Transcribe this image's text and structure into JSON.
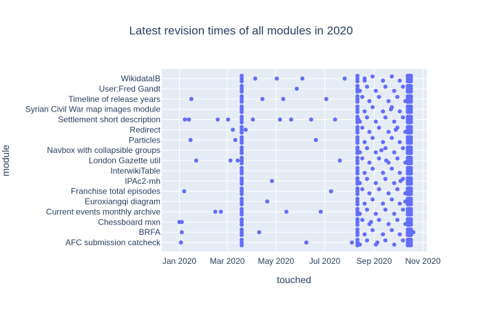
{
  "chart_data": {
    "type": "scatter",
    "title": "Latest revision times of all modules in 2020",
    "xlabel": "touched",
    "ylabel": "module",
    "x_ticks": [
      {
        "label": "Jan 2020",
        "date": "2020-01-01"
      },
      {
        "label": "Mar 2020",
        "date": "2020-03-01"
      },
      {
        "label": "May 2020",
        "date": "2020-05-01"
      },
      {
        "label": "Jul 2020",
        "date": "2020-07-01"
      },
      {
        "label": "Sep 2020",
        "date": "2020-09-01"
      },
      {
        "label": "Nov 2020",
        "date": "2020-11-01"
      }
    ],
    "xlim": [
      "2019-12-10",
      "2020-11-06"
    ],
    "y_ticks": [
      "AFC submission catcheck",
      "BRFA",
      "Chessboard mxn",
      "Current events monthly archive",
      "Euroxiangqi diagram",
      "Franchise total episodes",
      "IPAc2-mh",
      "InterwikiTable",
      "London Gazette util",
      "Navbox with collapsible groups",
      "Particles",
      "Redirect",
      "Settlement short description",
      "Syrian Civil War map images module",
      "Timeline of release years",
      "User:Fred Gandt",
      "WikidataIB"
    ],
    "marker_color": "#636efa",
    "grid": true,
    "series": [
      {
        "points": [
          [
            "2020-01-03",
            "AFC submission catcheck"
          ],
          [
            "2020-01-04",
            "BRFA"
          ],
          [
            "2020-01-01",
            "Chessboard mxn"
          ],
          [
            "2020-01-04",
            "Chessboard mxn"
          ],
          [
            "2020-01-07",
            "Franchise total episodes"
          ],
          [
            "2020-01-08",
            "Settlement short description"
          ],
          [
            "2020-01-13",
            "Settlement short description"
          ],
          [
            "2020-01-16",
            "Timeline of release years"
          ],
          [
            "2020-01-15",
            "Particles"
          ],
          [
            "2020-01-22",
            "London Gazette util"
          ],
          [
            "2020-02-15",
            "Current events monthly archive"
          ],
          [
            "2020-02-18",
            "Settlement short description"
          ],
          [
            "2020-02-22",
            "Current events monthly archive"
          ],
          [
            "2020-03-02",
            "Settlement short description"
          ],
          [
            "2020-03-05",
            "London Gazette util"
          ],
          [
            "2020-03-08",
            "Redirect"
          ],
          [
            "2020-03-11",
            "Particles"
          ],
          [
            "2020-03-14",
            "London Gazette util"
          ],
          [
            "2020-03-19",
            "London Gazette util"
          ],
          [
            "2020-03-24",
            "Redirect"
          ],
          [
            "2020-04-02",
            "Settlement short description"
          ],
          [
            "2020-04-05",
            "WikidataIB"
          ],
          [
            "2020-04-10",
            "BRFA"
          ],
          [
            "2020-04-14",
            "Timeline of release years"
          ],
          [
            "2020-04-20",
            "Euroxiangqi diagram"
          ],
          [
            "2020-04-26",
            "IPAc2-mh"
          ],
          [
            "2020-05-02",
            "WikidataIB"
          ],
          [
            "2020-05-06",
            "Settlement short description"
          ],
          [
            "2020-05-10",
            "Timeline of release years"
          ],
          [
            "2020-05-14",
            "Current events monthly archive"
          ],
          [
            "2020-05-20",
            "Settlement short description"
          ],
          [
            "2020-05-27",
            "User:Fred Gandt"
          ],
          [
            "2020-06-03",
            "WikidataIB"
          ],
          [
            "2020-06-08",
            "AFC submission catcheck"
          ],
          [
            "2020-06-14",
            "Settlement short description"
          ],
          [
            "2020-06-20",
            "Particles"
          ],
          [
            "2020-06-26",
            "Current events monthly archive"
          ],
          [
            "2020-07-03",
            "Timeline of release years"
          ],
          [
            "2020-07-09",
            "Franchise total episodes"
          ],
          [
            "2020-07-14",
            "Settlement short description"
          ],
          [
            "2020-07-20",
            "London Gazette util"
          ],
          [
            "2020-07-26",
            "WikidataIB"
          ],
          [
            "2020-08-04",
            "AFC submission catcheck"
          ],
          [
            "2020-08-12",
            "Settlement short description"
          ],
          [
            "2020-08-20",
            "WikidataIB"
          ],
          [
            "2020-08-28",
            "Chessboard mxn"
          ],
          [
            "2020-09-05",
            "AFC submission catcheck"
          ],
          [
            "2020-09-10",
            "Navbox with collapsible groups"
          ],
          [
            "2020-09-16",
            "London Gazette util"
          ],
          [
            "2020-09-22",
            "Syrian Civil War map images module"
          ],
          [
            "2020-09-28",
            "Redirect"
          ],
          [
            "2020-10-04",
            "IPAc2-mh"
          ],
          [
            "2020-10-10",
            "Euroxiangqi diagram"
          ],
          [
            "2020-10-16",
            "WikidataIB"
          ],
          [
            "2020-10-20",
            "BRFA"
          ]
        ]
      }
    ]
  }
}
